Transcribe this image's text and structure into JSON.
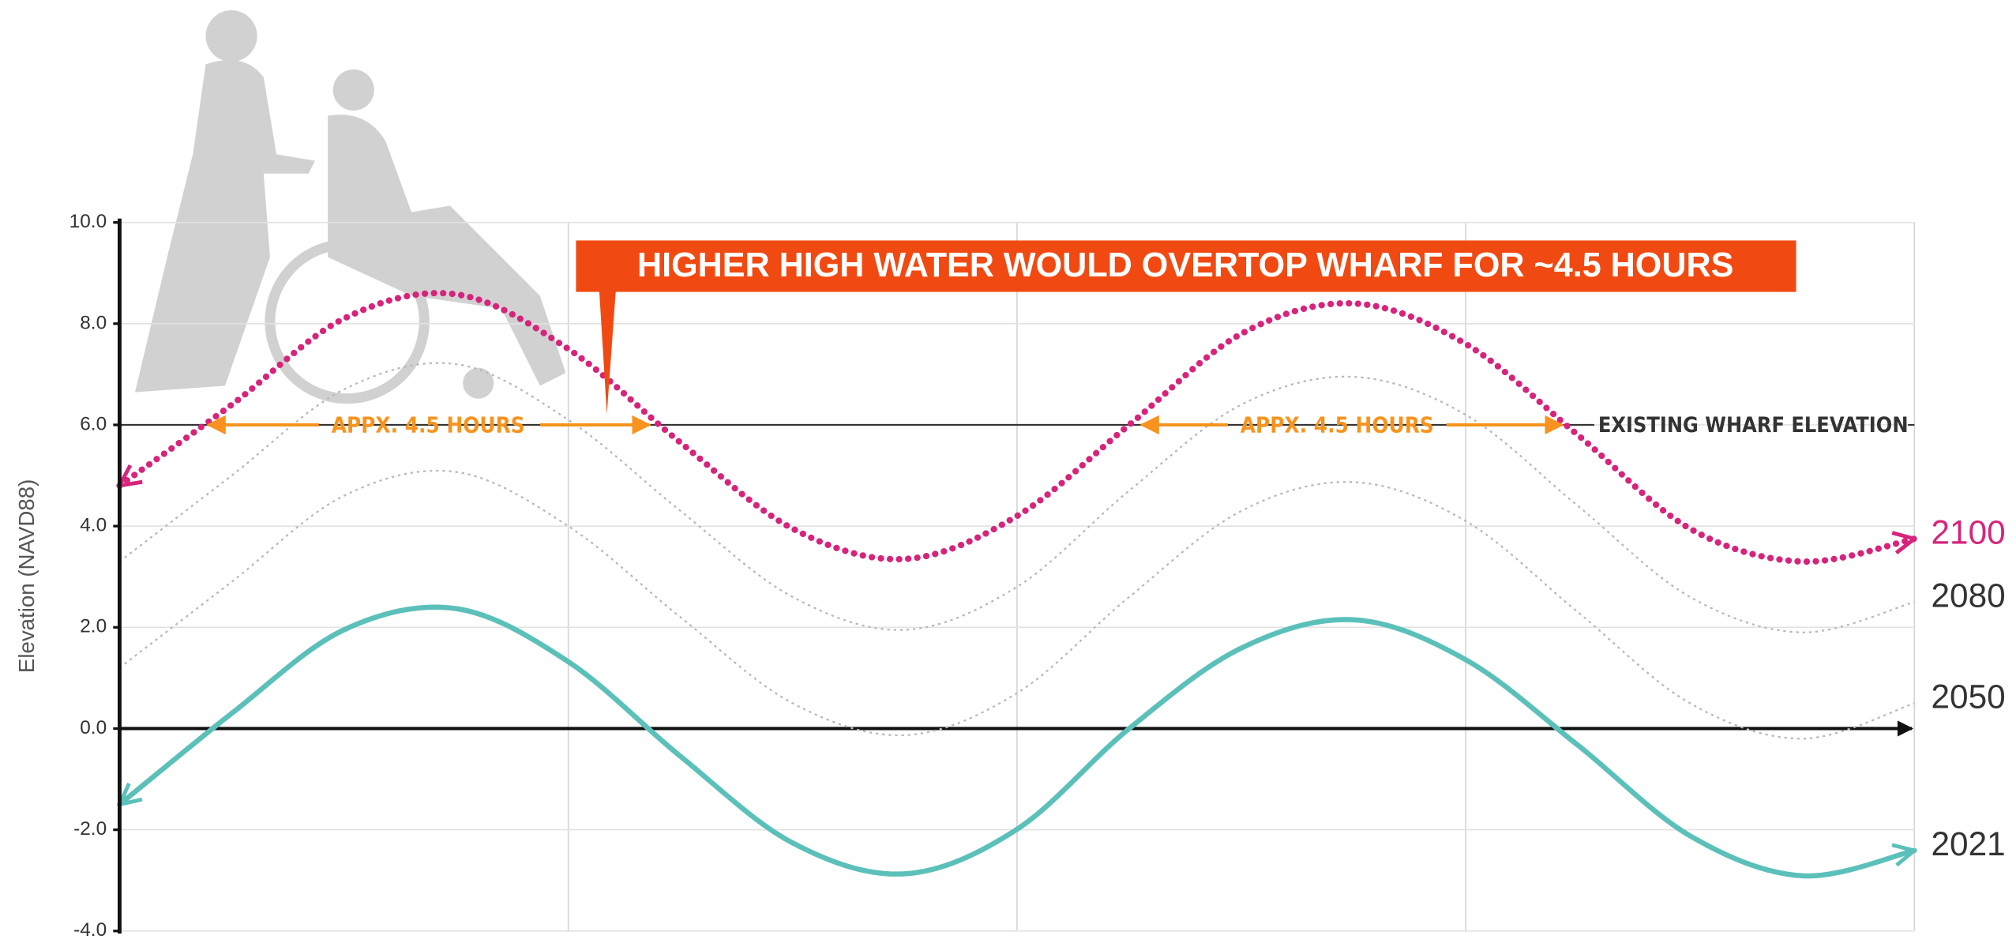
{
  "chart_data": {
    "type": "line",
    "y_label": "Elevation (NAVD88)",
    "callout": "HIGHER HIGH WATER WOULD OVERTOP WHARF FOR ~4.5 HOURS",
    "duration_labels": [
      "APPX. 4.5 HOURS",
      "APPX. 4.5 HOURS"
    ],
    "reference_line": {
      "value": 6,
      "label": "EXISTING WHARF ELEVATION"
    },
    "categories": [
      null,
      null,
      null,
      null,
      null,
      null,
      null,
      null,
      null,
      null,
      null,
      null,
      null,
      null,
      null,
      null,
      null
    ],
    "series": [
      {
        "name": "2100",
        "color": "#d6247c",
        "values": [
          4.8,
          6.4,
          8.1,
          8.58,
          7.5,
          5.65,
          3.95,
          3.35,
          4.2,
          6.0,
          7.8,
          8.4,
          7.6,
          5.8,
          3.95,
          3.3,
          3.75
        ]
      },
      {
        "name": "2080",
        "color": "#b9b9b9",
        "values": [
          3.3,
          5.0,
          6.7,
          7.2,
          6.1,
          4.3,
          2.6,
          1.95,
          2.8,
          4.7,
          6.4,
          6.95,
          6.2,
          4.4,
          2.6,
          1.9,
          2.5
        ]
      },
      {
        "name": "2050",
        "color": "#b9b9b9",
        "values": [
          1.2,
          2.9,
          4.6,
          5.07,
          4.0,
          2.2,
          0.5,
          -0.13,
          0.7,
          2.6,
          4.3,
          4.87,
          4.1,
          2.3,
          0.5,
          -0.2,
          0.5
        ]
      },
      {
        "name": "2021",
        "color": "#5cc0ba",
        "values": [
          -1.5,
          0.3,
          1.95,
          2.37,
          1.32,
          -0.55,
          -2.26,
          -2.87,
          -1.99,
          0,
          1.59,
          2.15,
          1.36,
          -0.33,
          -2.12,
          -2.91,
          -2.41
        ]
      }
    ],
    "ylim": [
      -4,
      10
    ],
    "yticks": [
      {
        "value": -4,
        "label": "-4.0"
      },
      {
        "value": -2,
        "label": "-2.0"
      },
      {
        "value": 0,
        "label": "0.0"
      },
      {
        "value": 2,
        "label": "2.0"
      },
      {
        "value": 4,
        "label": "4.0"
      },
      {
        "value": 6,
        "label": "6.0"
      },
      {
        "value": 8,
        "label": "8.0"
      },
      {
        "value": 10,
        "label": "10.0"
      }
    ],
    "grid": true
  }
}
